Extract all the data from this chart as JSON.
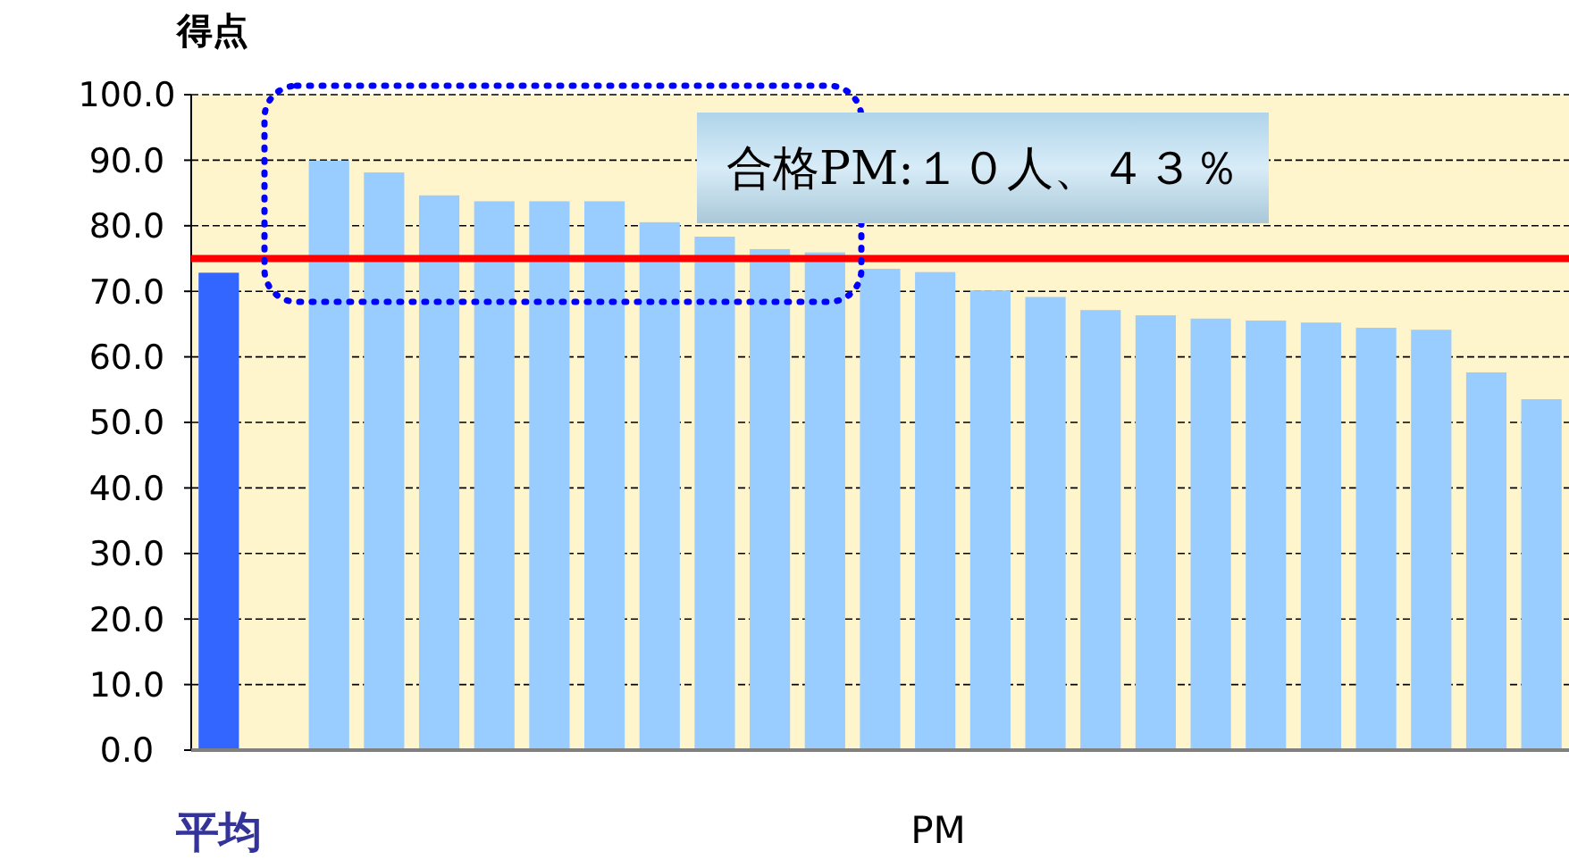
{
  "chart_data": {
    "type": "bar",
    "ylabel": "得点",
    "xlabel": "PM",
    "categories": [
      "平均",
      null,
      null,
      null,
      null,
      null,
      null,
      null,
      null,
      null,
      null,
      null,
      null,
      null,
      null,
      null,
      null,
      null,
      null,
      null,
      null,
      null,
      null,
      null,
      null
    ],
    "values": [
      72.7,
      null,
      89.8,
      88.0,
      84.5,
      83.6,
      83.6,
      83.6,
      80.4,
      78.2,
      76.3,
      75.8,
      73.3,
      72.8,
      70.0,
      69.0,
      67.0,
      66.2,
      65.7,
      65.4,
      65.1,
      64.3,
      64.0,
      57.5,
      53.4
    ],
    "colors": [
      "#3366ff",
      null,
      "#99ccff",
      "#99ccff",
      "#99ccff",
      "#99ccff",
      "#99ccff",
      "#99ccff",
      "#99ccff",
      "#99ccff",
      "#99ccff",
      "#99ccff",
      "#99ccff",
      "#99ccff",
      "#99ccff",
      "#99ccff",
      "#99ccff",
      "#99ccff",
      "#99ccff",
      "#99ccff",
      "#99ccff",
      "#99ccff",
      "#99ccff",
      "#99ccff",
      "#99ccff"
    ],
    "ylim": [
      0,
      100
    ],
    "yticks": [
      {
        "value": 0,
        "label": "0.0"
      },
      {
        "value": 10,
        "label": "10.0"
      },
      {
        "value": 20,
        "label": "20.0"
      },
      {
        "value": 30,
        "label": "30.0"
      },
      {
        "value": 40,
        "label": "40.0"
      },
      {
        "value": 50,
        "label": "50.0"
      },
      {
        "value": 60,
        "label": "60.0"
      },
      {
        "value": 70,
        "label": "70.0"
      },
      {
        "value": 80,
        "label": "80.0"
      },
      {
        "value": 90,
        "label": "90.0"
      },
      {
        "value": 100,
        "label": "100.0"
      }
    ],
    "grid": "y",
    "ref_lines": [
      {
        "axis": "y",
        "value": 75,
        "label": null,
        "color": "#ff0000"
      }
    ],
    "annotations": [
      "合格PM:１０人、４３％"
    ]
  }
}
